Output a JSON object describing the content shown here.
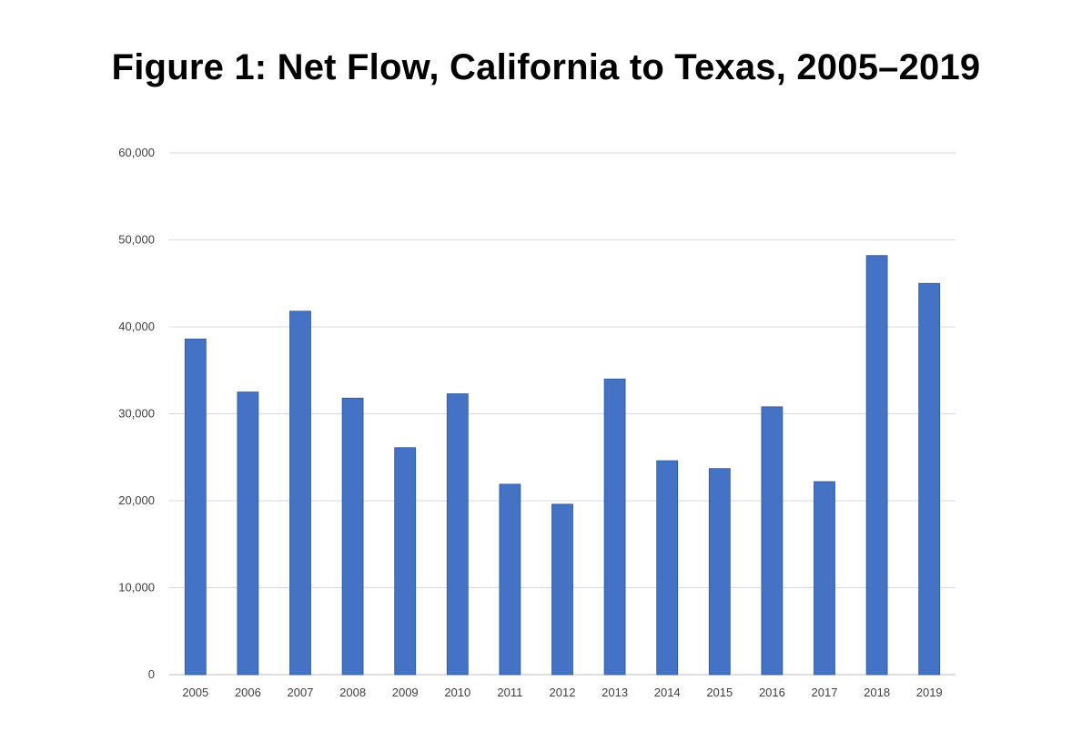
{
  "chart_data": {
    "type": "bar",
    "title": "Figure 1: Net Flow, California to Texas, 2005–2019",
    "xlabel": "",
    "ylabel": "",
    "categories": [
      "2005",
      "2006",
      "2007",
      "2008",
      "2009",
      "2010",
      "2011",
      "2012",
      "2013",
      "2014",
      "2015",
      "2016",
      "2017",
      "2018",
      "2019"
    ],
    "values": [
      38600,
      32500,
      41800,
      31800,
      26100,
      32300,
      21900,
      19600,
      34000,
      24600,
      23700,
      30800,
      22200,
      48200,
      45000
    ],
    "ylim": [
      0,
      60000
    ],
    "yticks": [
      0,
      10000,
      20000,
      30000,
      40000,
      50000,
      60000
    ],
    "ytick_labels": [
      "0",
      "10,000",
      "20,000",
      "30,000",
      "40,000",
      "50,000",
      "60,000"
    ],
    "grid": true,
    "legend": "none",
    "colors": {
      "bar": "#4472C4",
      "bar_edge": "#2F5597",
      "grid": "#D9D9D9",
      "axis": "#BFBFBF"
    }
  }
}
